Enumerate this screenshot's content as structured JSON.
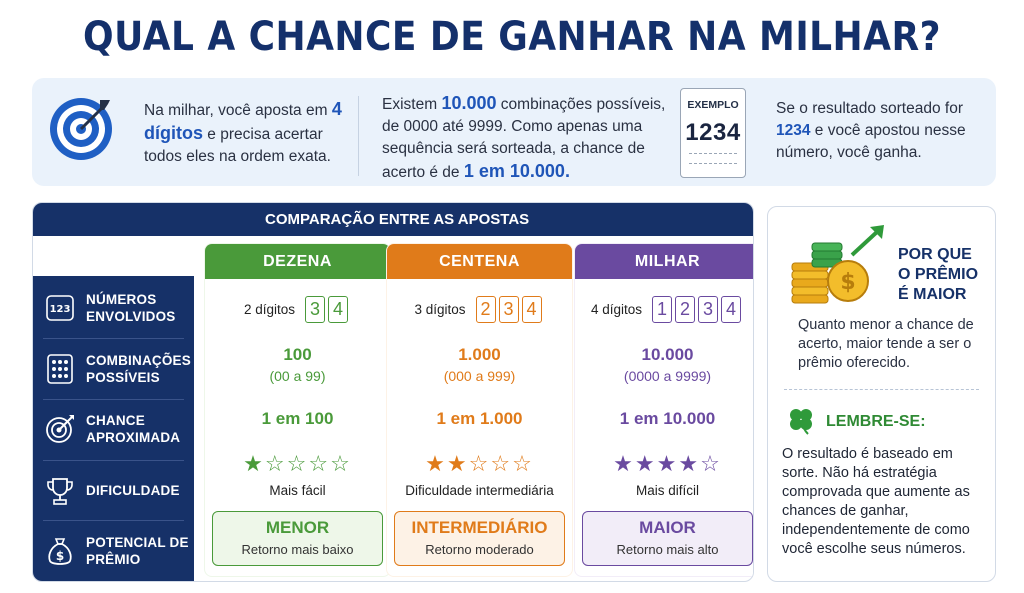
{
  "title": "QUAL A CHANCE DE GANHAR NA MILHAR?",
  "intro": {
    "col1": {
      "before": "Na milhar, você aposta em ",
      "highlight": "4 dígitos",
      "after": " e precisa acertar todos eles na ordem exata."
    },
    "col2": {
      "before": "Existem ",
      "highlight1": "10.000",
      "middle": " combinações possíveis, de 0000 até 9999. Como apenas uma sequência será sorteada, a chance de acerto é de ",
      "highlight2": "1 em 10.000."
    },
    "ticket": {
      "label": "EXEMPLO",
      "number": "1234"
    },
    "col3": {
      "before": "Se o resultado sorteado for ",
      "highlight": "1234",
      "after": " e você apostou nesse número, você ganha."
    }
  },
  "comparison": {
    "header": "COMPARAÇÃO ENTRE AS APOSTAS",
    "rows": [
      {
        "label_line1": "NÚMEROS",
        "label_line2": "ENVOLVIDOS",
        "icon": "numbers-123-icon"
      },
      {
        "label_line1": "COMBINAÇÕES",
        "label_line2": "POSSÍVEIS",
        "icon": "grid-dots-icon"
      },
      {
        "label_line1": "CHANCE",
        "label_line2": "APROXIMADA",
        "icon": "target-icon"
      },
      {
        "label_line1": "DIFICULDADE",
        "label_line2": "",
        "icon": "trophy-icon"
      },
      {
        "label_line1": "POTENCIAL DE",
        "label_line2": "PRÊMIO",
        "icon": "money-bag-icon"
      }
    ],
    "columns": [
      {
        "name": "DEZENA",
        "color": "#4a9a3a",
        "light": "#eef7e9",
        "digits_label": "2 dígitos",
        "digits": [
          "3",
          "4"
        ],
        "combos": "100",
        "combos_range": "(00 a 99)",
        "chance": "1 em 100",
        "stars_filled": 1,
        "stars_total": 5,
        "difficulty": "Mais fácil",
        "prize": "MENOR",
        "prize_sub": "Retorno mais baixo"
      },
      {
        "name": "CENTENA",
        "color": "#e07b1a",
        "light": "#fdf2e6",
        "digits_label": "3 dígitos",
        "digits": [
          "2",
          "3",
          "4"
        ],
        "combos": "1.000",
        "combos_range": "(000 a 999)",
        "chance": "1 em 1.000",
        "stars_filled": 2,
        "stars_total": 5,
        "difficulty": "Dificuldade intermediária",
        "prize": "INTERMEDIÁRIO",
        "prize_sub": "Retorno moderado"
      },
      {
        "name": "MILHAR",
        "color": "#6a4aa0",
        "light": "#f2edf8",
        "digits_label": "4 dígitos",
        "digits": [
          "1",
          "2",
          "3",
          "4"
        ],
        "combos": "10.000",
        "combos_range": "(0000 a 9999)",
        "chance": "1 em 10.000",
        "stars_filled": 4,
        "stars_total": 5,
        "difficulty": "Mais difícil",
        "prize": "MAIOR",
        "prize_sub": "Retorno mais alto"
      }
    ]
  },
  "side": {
    "why_title_1": "POR QUE",
    "why_title_2": "O PRÊMIO",
    "why_title_3": "É MAIOR",
    "why_text": "Quanto menor a chance de acerto, maior tende a ser o prêmio oferecido.",
    "remember_title": "LEMBRE-SE:",
    "remember_text": "O resultado é baseado em sorte. Não há estratégia comprovada que aumente as chances de ganhar, independentemente de como você escolhe seus números."
  }
}
